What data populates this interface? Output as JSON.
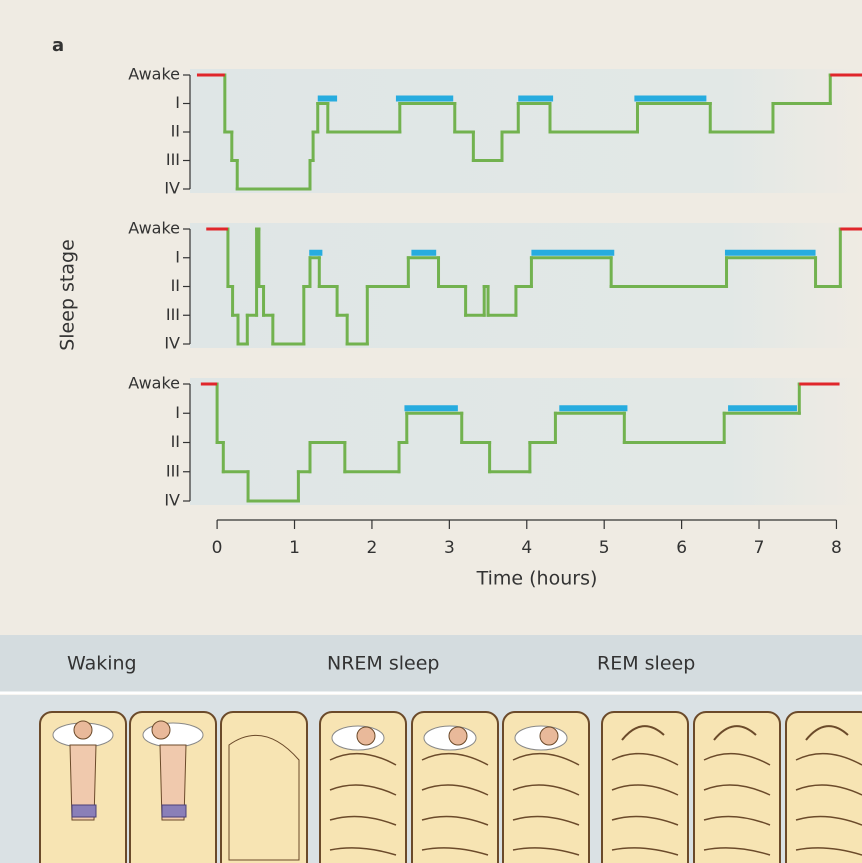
{
  "chart_data": {
    "type": "line",
    "panel_label": "a",
    "ylabel": "Sleep stage",
    "xlabel": "Time (hours)",
    "xlim": [
      -0.35,
      8.33
    ],
    "xticks": [
      0,
      1,
      2,
      3,
      4,
      5,
      6,
      7,
      8
    ],
    "ylim": [
      0,
      4
    ],
    "y_inverted": true,
    "yticks": [
      {
        "value": 0,
        "label": "Awake"
      },
      {
        "value": 1,
        "label": "I"
      },
      {
        "value": 2,
        "label": "II"
      },
      {
        "value": 3,
        "label": "III"
      },
      {
        "value": 4,
        "label": "IV"
      }
    ],
    "line_color": "#72b24f",
    "rem_color": "#27acdf",
    "wake_color": "#e0262b",
    "panels": [
      {
        "x": [
          0.1,
          0.19,
          0.26,
          1.2,
          1.24,
          1.3,
          1.43,
          2.36,
          3.07,
          3.31,
          3.68,
          3.89,
          4.3,
          5.43,
          6.37,
          7.18,
          7.92
        ],
        "values": [
          2,
          3,
          4,
          3,
          2,
          1,
          2,
          1,
          2,
          3,
          2,
          1,
          2,
          1,
          2,
          1,
          0
        ],
        "end": 7.94,
        "rem": [
          [
            1.3,
            1.55
          ],
          [
            2.31,
            3.05
          ],
          [
            3.89,
            4.34
          ],
          [
            5.39,
            6.32
          ]
        ],
        "wake": [
          [
            -0.26,
            0.1
          ],
          [
            7.92,
            8.33
          ]
        ]
      },
      {
        "x": [
          0.14,
          0.2,
          0.27,
          0.39,
          0.51,
          0.54,
          0.6,
          0.72,
          1.12,
          1.2,
          1.32,
          1.55,
          1.68,
          1.94,
          2.47,
          2.86,
          3.21,
          3.45,
          3.5,
          3.86,
          4.06,
          5.09,
          6.58,
          7.73,
          8.05
        ],
        "values": [
          2,
          3,
          4,
          3,
          0,
          2,
          3,
          4,
          2,
          1,
          2,
          3,
          4,
          2,
          1,
          2,
          3,
          2,
          3,
          2,
          1,
          2,
          1,
          2,
          0
        ],
        "end": 8.07,
        "rem": [
          [
            1.19,
            1.36
          ],
          [
            2.51,
            2.83
          ],
          [
            4.06,
            5.13
          ],
          [
            6.56,
            7.73
          ]
        ],
        "wake": [
          [
            -0.14,
            0.14
          ],
          [
            8.05,
            8.33
          ]
        ]
      },
      {
        "x": [
          0.0,
          0.08,
          0.4,
          1.05,
          1.2,
          1.65,
          2.35,
          2.45,
          3.16,
          3.52,
          4.04,
          4.37,
          5.26,
          6.55,
          7.52
        ],
        "values": [
          2,
          3,
          4,
          3,
          2,
          3,
          2,
          1,
          2,
          3,
          2,
          1,
          2,
          1,
          0
        ],
        "end": 7.53,
        "rem": [
          [
            2.42,
            3.11
          ],
          [
            4.42,
            5.3
          ],
          [
            6.6,
            7.49
          ]
        ],
        "wake": [
          [
            -0.21,
            0.0
          ],
          [
            7.52,
            8.04
          ]
        ]
      }
    ]
  },
  "strip": {
    "labels": [
      "Waking",
      "NREM sleep",
      "REM sleep"
    ]
  }
}
